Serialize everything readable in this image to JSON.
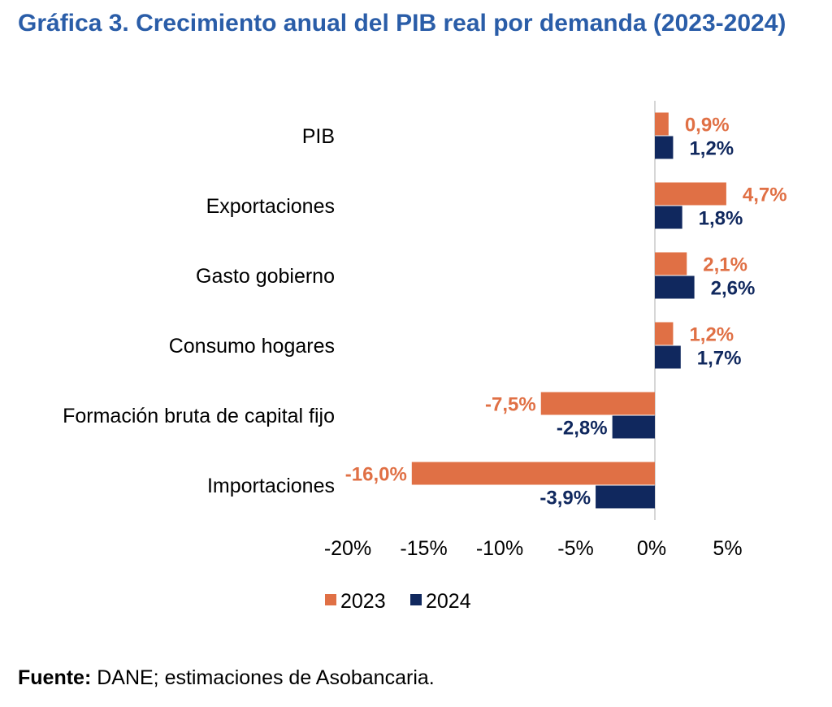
{
  "title": "Gráfica 3. Crecimiento anual del PIB real por demanda (2023-2024)",
  "source_label": "Fuente:",
  "source_text": " DANE; estimaciones de Asobancaria.",
  "chart_data": {
    "type": "bar",
    "orientation": "horizontal",
    "categories": [
      "PIB",
      "Exportaciones",
      "Gasto gobierno",
      "Consumo hogares",
      "Formación bruta de capital fijo",
      "Importaciones"
    ],
    "series": [
      {
        "name": "2023",
        "color": "#e07045",
        "values": [
          0.9,
          4.7,
          2.1,
          1.2,
          -7.5,
          -16.0
        ],
        "labels": [
          "0,9%",
          "4,7%",
          "2,1%",
          "1,2%",
          "-7,5%",
          "-16,0%"
        ]
      },
      {
        "name": "2024",
        "color": "#10285e",
        "values": [
          1.2,
          1.8,
          2.6,
          1.7,
          -2.8,
          -3.9
        ],
        "labels": [
          "1,2%",
          "1,8%",
          "2,6%",
          "1,7%",
          "-2,8%",
          "-3,9%"
        ]
      }
    ],
    "xlim": [
      -20,
      5
    ],
    "xticks": [
      -20,
      -15,
      -10,
      -5,
      0,
      5
    ],
    "xtick_labels": [
      "-20%",
      "-15%",
      "-10%",
      "-5%",
      "0%",
      "5%"
    ],
    "legend_position": "bottom",
    "grid": false
  }
}
